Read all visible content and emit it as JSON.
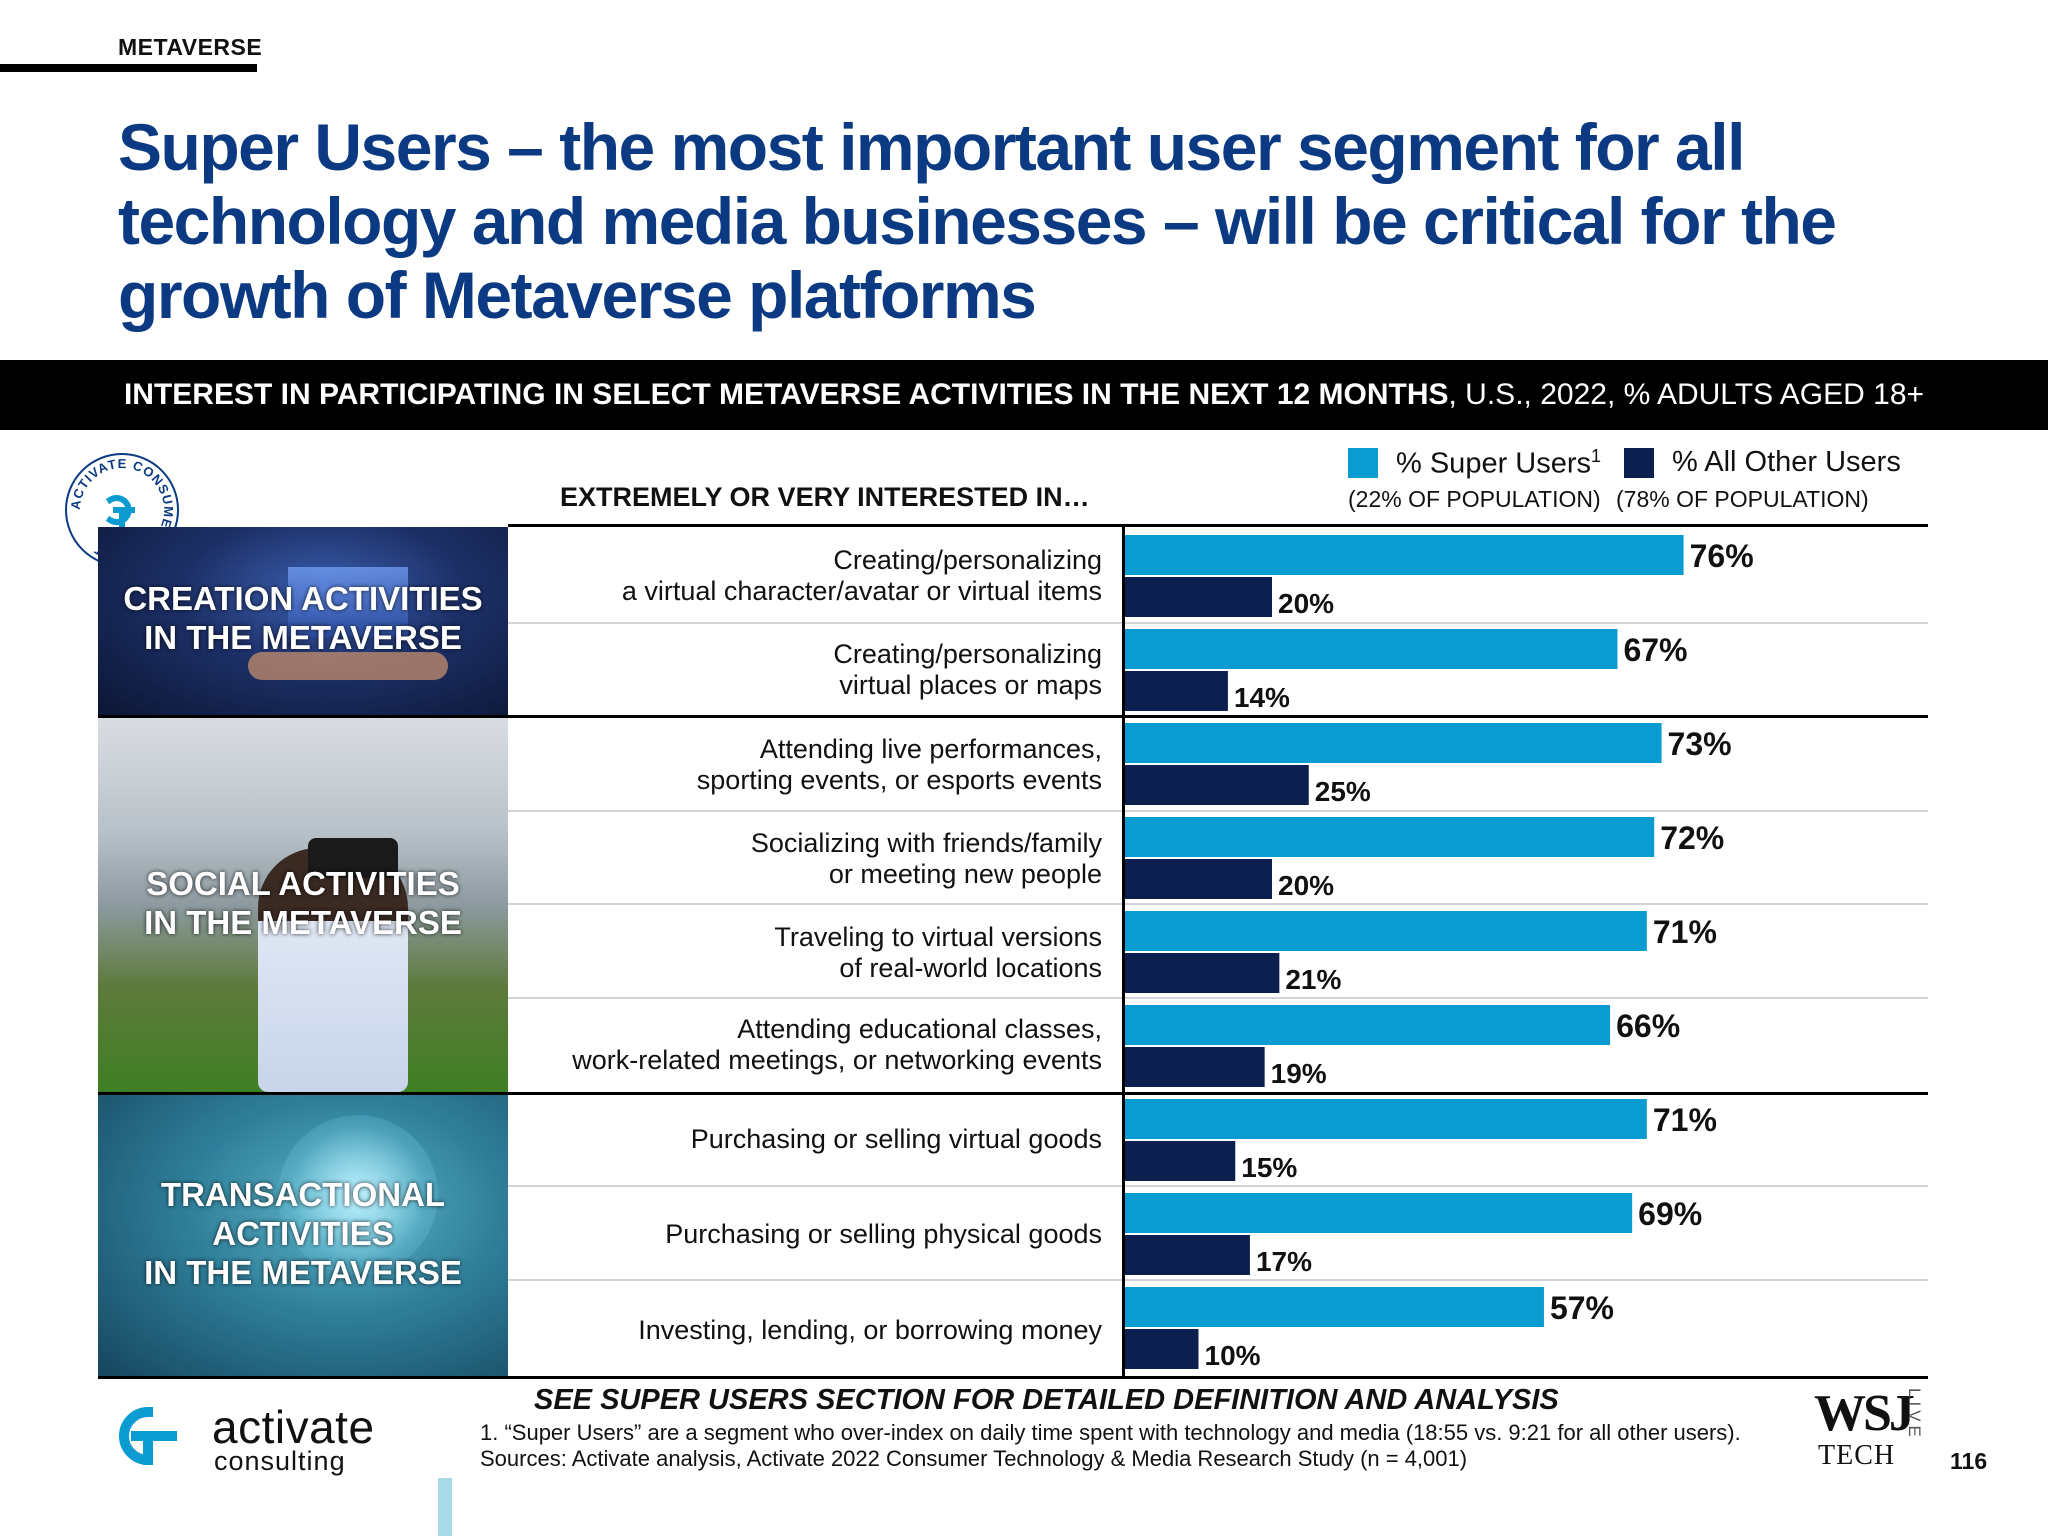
{
  "section_tag": "METAVERSE",
  "title": "Super Users – the most important user segment for all technology and media businesses – will be critical for the growth of Metaverse platforms",
  "banner": {
    "bold": "INTEREST IN PARTICIPATING IN SELECT METAVERSE ACTIVITIES IN THE NEXT 12 MONTHS",
    "rest": ", U.S., 2022, % ADULTS AGED 18+"
  },
  "seal_text": "ACTIVATE CONSUMER INSIGHT",
  "column_header": "EXTREMELY OR VERY INTERESTED IN…",
  "legend": {
    "super": {
      "label": "% Super Users",
      "sup": "1",
      "sub": "(22% OF POPULATION)"
    },
    "other": {
      "label": "% All Other Users",
      "sub": "(78% OF POPULATION)"
    }
  },
  "groups": [
    {
      "label_lines": [
        "CREATION ACTIVITIES",
        "IN THE METAVERSE"
      ]
    },
    {
      "label_lines": [
        "SOCIAL ACTIVITIES",
        "IN THE METAVERSE"
      ]
    },
    {
      "label_lines": [
        "TRANSACTIONAL",
        "ACTIVITIES",
        "IN THE METAVERSE"
      ]
    }
  ],
  "rows": [
    {
      "lines": [
        "Creating/personalizing",
        "a virtual character/avatar or virtual items"
      ]
    },
    {
      "lines": [
        "Creating/personalizing",
        "virtual places or maps"
      ]
    },
    {
      "lines": [
        "Attending live performances,",
        "sporting events, or esports events"
      ]
    },
    {
      "lines": [
        "Socializing with friends/family",
        "or meeting new people"
      ]
    },
    {
      "lines": [
        "Traveling to virtual versions",
        "of real-world locations"
      ]
    },
    {
      "lines": [
        "Attending educational classes,",
        "work-related meetings, or networking events"
      ]
    },
    {
      "lines": [
        "Purchasing or selling virtual goods"
      ]
    },
    {
      "lines": [
        "Purchasing or selling physical goods"
      ]
    },
    {
      "lines": [
        "Investing, lending, or borrowing money"
      ]
    }
  ],
  "chart_data": {
    "type": "bar",
    "orientation": "horizontal",
    "categories": [
      "Creating/personalizing a virtual character/avatar or virtual items",
      "Creating/personalizing virtual places or maps",
      "Attending live performances, sporting events, or esports events",
      "Socializing with friends/family or meeting new people",
      "Traveling to virtual versions of real-world locations",
      "Attending educational classes, work-related meetings, or networking events",
      "Purchasing or selling virtual goods",
      "Purchasing or selling physical goods",
      "Investing, lending, or borrowing money"
    ],
    "series": [
      {
        "name": "% Super Users",
        "color": "#0a9bd0",
        "values": [
          76,
          67,
          73,
          72,
          71,
          66,
          71,
          69,
          57
        ]
      },
      {
        "name": "% All Other Users",
        "color": "#0d1f4e",
        "values": [
          20,
          14,
          25,
          20,
          21,
          19,
          15,
          17,
          10
        ]
      }
    ],
    "value_suffix": "%",
    "xlim": [
      0,
      100
    ],
    "grid": false,
    "legend_position": "top-right"
  },
  "footnote_bold": "SEE SUPER USERS SECTION FOR DETAILED DEFINITION AND ANALYSIS",
  "footnote_1": "1. “Super Users” are a segment who over-index on daily time spent with technology and media (18:55 vs. 9:21 for all other users).",
  "footnote_2": "Sources: Activate analysis, Activate 2022 Consumer Technology & Media Research Study (n = 4,001)",
  "logo": {
    "word1": "activate",
    "word2": "consulting",
    "color": "#0a9bd0"
  },
  "wsj": {
    "w1": "WSJ",
    "w2": "TECH",
    "live": "LIVE"
  },
  "page_number": "116"
}
